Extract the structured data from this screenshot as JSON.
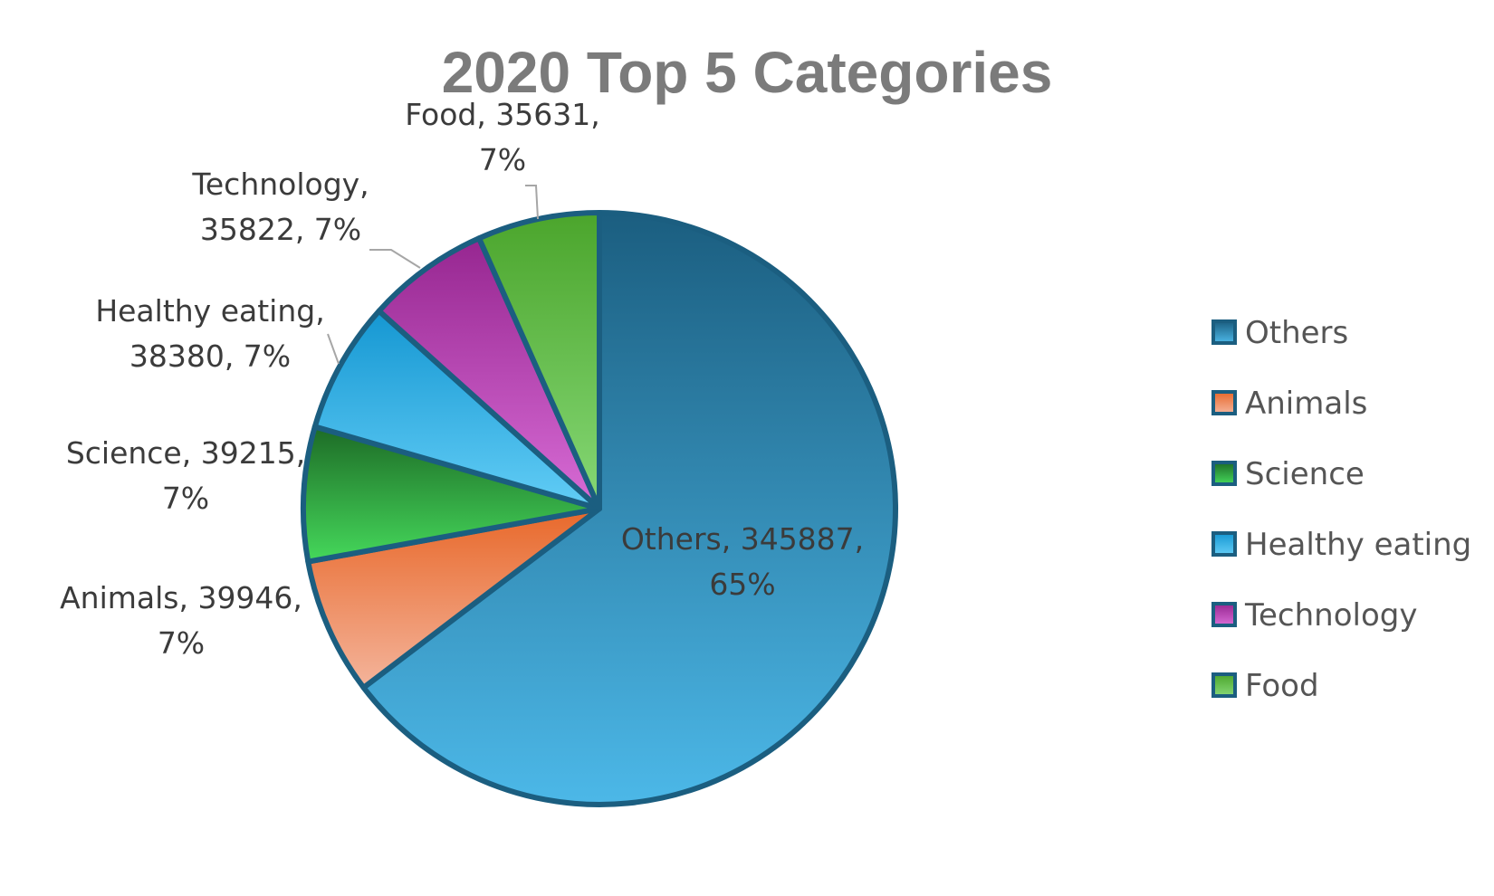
{
  "chart_data": {
    "type": "pie",
    "title": "2020 Top 5 Categories",
    "slices": [
      {
        "name": "Others",
        "value": 345887,
        "percent": "65%",
        "label_lines": [
          "Others, 345887,",
          "65%"
        ],
        "color_top": "#1b5e80",
        "color_bottom": "#4cb8e8"
      },
      {
        "name": "Animals",
        "value": 39946,
        "percent": "7%",
        "label_lines": [
          "Animals, 39946,",
          "7%"
        ],
        "color_top": "#e8682a",
        "color_bottom": "#f4b49b"
      },
      {
        "name": "Science",
        "value": 39215,
        "percent": "7%",
        "label_lines": [
          "Science, 39215,",
          "7%"
        ],
        "color_top": "#1d6b26",
        "color_bottom": "#45d85b"
      },
      {
        "name": "Healthy eating",
        "value": 38380,
        "percent": "7%",
        "label_lines": [
          "Healthy eating,",
          "38380, 7%"
        ],
        "color_top": "#1597d2",
        "color_bottom": "#62cdf6"
      },
      {
        "name": "Technology",
        "value": 35822,
        "percent": "7%",
        "label_lines": [
          "Technology,",
          "35822, 7%"
        ],
        "color_top": "#962690",
        "color_bottom": "#d86cd6"
      },
      {
        "name": "Food",
        "value": 35631,
        "percent": "7%",
        "label_lines": [
          "Food, 35631,",
          "7%"
        ],
        "color_top": "#4ba52c",
        "color_bottom": "#86d876"
      }
    ],
    "start_angle": "12 o'clock",
    "direction": "clockwise",
    "legend": {
      "position": "right",
      "entries": [
        "Others",
        "Animals",
        "Science",
        "Healthy eating",
        "Technology",
        "Food"
      ]
    }
  }
}
